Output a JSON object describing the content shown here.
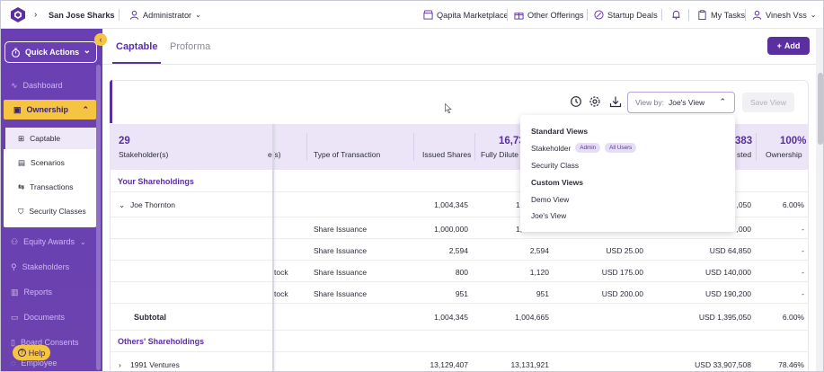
{
  "topbar": {
    "company": "San Jose Sharks",
    "role": "Administrator",
    "marketplace": "Qapita Marketplace",
    "offerings": "Other Offerings",
    "startup_deals": "Startup Deals",
    "my_tasks": "My Tasks",
    "user": "Vinesh Vss"
  },
  "sidebar": {
    "quick_actions": "Quick Actions",
    "dashboard": "Dashboard",
    "ownership": "Ownership",
    "sub_items": [
      "Captable",
      "Scenarios",
      "Transactions",
      "Security Classes"
    ],
    "equity_awards": "Equity Awards",
    "stakeholders": "Stakeholders",
    "reports": "Reports",
    "documents": "Documents",
    "board_consents": "Board Consents",
    "employee": "Employee",
    "help": "Help"
  },
  "tabs": [
    "Captable",
    "Proforma"
  ],
  "add_button": "Add",
  "toolbar": {
    "view_by_label": "View by:",
    "view_by_value": "Joe's View",
    "save_view": "Save View"
  },
  "dropdown": {
    "standard_header": "Standard Views",
    "stakeholder": "Stakeholder",
    "chip_admin": "Admin",
    "chip_all_users": "All Users",
    "security_class": "Security Class",
    "custom_header": "Custom Views",
    "demo_view": "Demo View",
    "joes_view": "Joe's View"
  },
  "table": {
    "header": {
      "count": "29",
      "stakeholders": "Stakeholder(s)",
      "col_partial": "e(s)",
      "type_of_transaction": "Type of Transaction",
      "issued_shares": "Issued Shares",
      "fully_diluted_value": "16,73",
      "fully_diluted": "Fully Dilute",
      "invested_value": "383",
      "invested": "sted",
      "ownership_value": "100%",
      "ownership": "Ownership"
    },
    "your_shareholdings": "Your Shareholdings",
    "joe": {
      "name": "Joe Thornton",
      "issued": "1,004,345",
      "fd": "1,",
      "invested": ",050",
      "own": "6.00%"
    },
    "tx_rows": [
      {
        "cls": "",
        "type": "Share Issuance",
        "issued": "1,000,000",
        "fd": "1,",
        "price": "",
        "invested": ",000",
        "own": "-"
      },
      {
        "cls": "",
        "type": "Share Issuance",
        "issued": "2,594",
        "fd": "2,594",
        "price": "USD 25.00",
        "invested": "USD 64,850",
        "own": "-"
      },
      {
        "cls": "tock",
        "type": "Share Issuance",
        "issued": "800",
        "fd": "1,120",
        "price": "USD 175.00",
        "invested": "USD 140,000",
        "own": "-"
      },
      {
        "cls": "tock",
        "type": "Share Issuance",
        "issued": "951",
        "fd": "951",
        "price": "USD 200.00",
        "invested": "USD 190,200",
        "own": "-"
      }
    ],
    "subtotal": {
      "label": "Subtotal",
      "issued": "1,004,345",
      "fd": "1,004,665",
      "invested": "USD 1,395,050",
      "own": "6.00%"
    },
    "others_shareholdings": "Others' Shareholdings",
    "ventures": {
      "name": "1991 Ventures",
      "issued": "13,129,407",
      "fd": "13,131,921",
      "invested": "USD 33,907,508",
      "own": "78.46%"
    }
  },
  "colors": {
    "brand": "#5a2fa0",
    "accent": "#f5c542",
    "sidebar": "#6a3fb3"
  }
}
